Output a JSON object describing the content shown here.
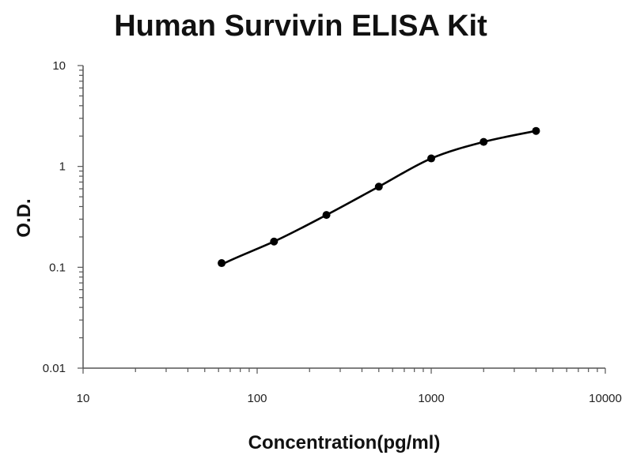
{
  "chart_data": {
    "type": "scatter",
    "title": "Human Survivin ELISA Kit",
    "xlabel": "Concentration(pg/ml)",
    "ylabel": "O.D.",
    "xscale": "log",
    "yscale": "log",
    "xlim": [
      10,
      10000
    ],
    "ylim": [
      0.01,
      10
    ],
    "x_tick_labels": [
      "10",
      "100",
      "1000",
      "10000"
    ],
    "y_tick_labels": [
      "10",
      "1",
      "0.1",
      "0.01"
    ],
    "grid": false,
    "legend": "none",
    "series": [
      {
        "points": [
          {
            "x": 62.5,
            "y": 0.11
          },
          {
            "x": 125,
            "y": 0.18
          },
          {
            "x": 250,
            "y": 0.33
          },
          {
            "x": 500,
            "y": 0.63
          },
          {
            "x": 1000,
            "y": 1.2
          },
          {
            "x": 2000,
            "y": 1.75
          },
          {
            "x": 4000,
            "y": 2.25
          }
        ],
        "fit_line": true,
        "color": "#000000"
      }
    ]
  }
}
